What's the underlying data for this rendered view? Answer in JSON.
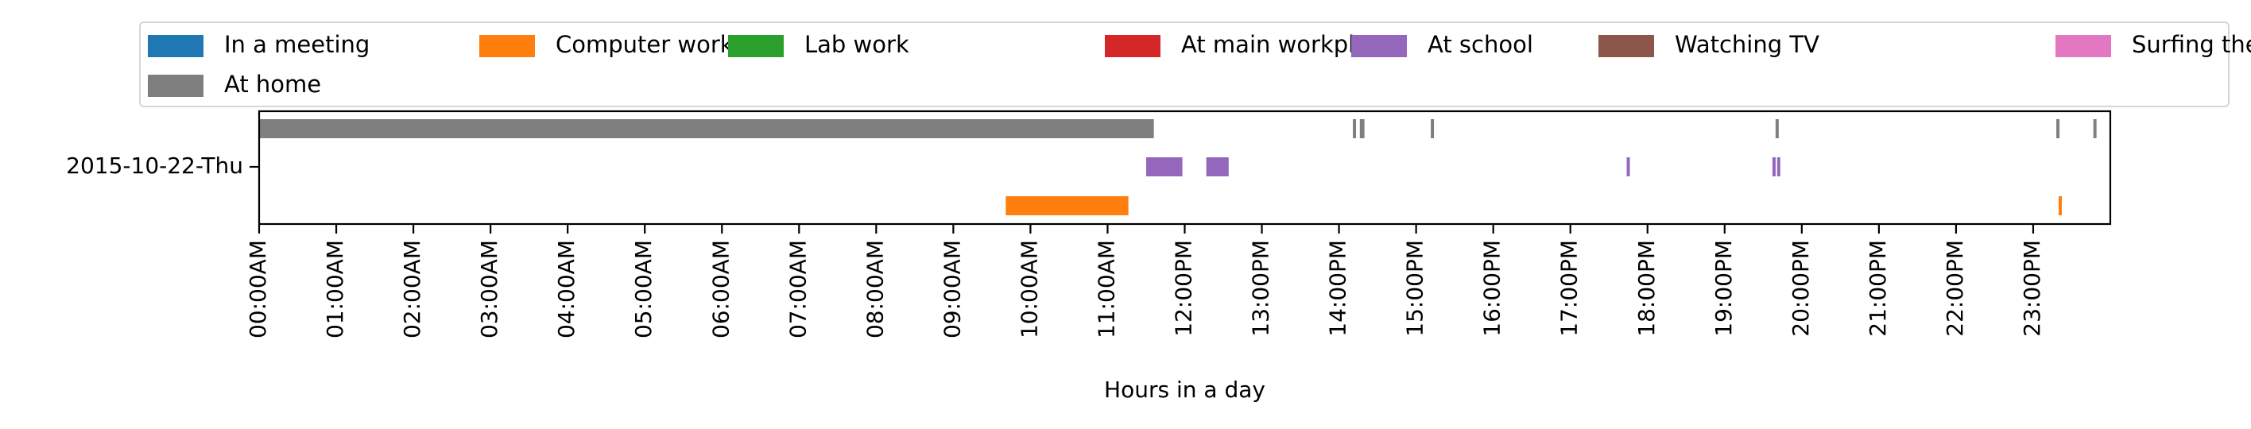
{
  "chart_data": {
    "type": "timeline",
    "title": "",
    "xlabel": "Hours in a day",
    "ylabel": "",
    "row_label": "2015-10-22-Thu",
    "xlim": [
      0,
      24
    ],
    "x_unit": "hours",
    "x_ticks": [
      0,
      1,
      2,
      3,
      4,
      5,
      6,
      7,
      8,
      9,
      10,
      11,
      12,
      13,
      14,
      15,
      16,
      17,
      18,
      19,
      20,
      21,
      22,
      23
    ],
    "x_tick_labels": [
      "00:00AM",
      "01:00AM",
      "02:00AM",
      "03:00AM",
      "04:00AM",
      "05:00AM",
      "06:00AM",
      "07:00AM",
      "08:00AM",
      "09:00AM",
      "10:00AM",
      "11:00AM",
      "12:00PM",
      "13:00PM",
      "14:00PM",
      "15:00PM",
      "16:00PM",
      "17:00PM",
      "18:00PM",
      "19:00PM",
      "20:00PM",
      "21:00PM",
      "22:00PM",
      "23:00PM"
    ],
    "legend_position": "top",
    "lanes": [
      "At home",
      "At school",
      "Computer work"
    ],
    "series": [
      {
        "name": "In a meeting",
        "color": "#1f77b4",
        "intervals": []
      },
      {
        "name": "Computer work",
        "color": "#ff7f0e",
        "intervals": [
          [
            9.68,
            11.27
          ],
          [
            23.33,
            23.37
          ]
        ]
      },
      {
        "name": "Lab work",
        "color": "#2ca02c",
        "intervals": []
      },
      {
        "name": "At main workplace",
        "color": "#d62728",
        "intervals": []
      },
      {
        "name": "At school",
        "color": "#9467bd",
        "intervals": [
          [
            11.5,
            11.97
          ],
          [
            12.28,
            12.57
          ],
          [
            17.73,
            17.77
          ],
          [
            19.62,
            19.66
          ],
          [
            19.68,
            19.72
          ]
        ]
      },
      {
        "name": "Watching TV",
        "color": "#8c564b",
        "intervals": []
      },
      {
        "name": "Surfing the internet",
        "color": "#e377c2",
        "intervals": []
      },
      {
        "name": "At home",
        "color": "#7f7f7f",
        "intervals": [
          [
            0.0,
            11.5
          ],
          [
            11.5,
            11.6
          ],
          [
            14.18,
            14.22
          ],
          [
            14.27,
            14.33
          ],
          [
            15.19,
            15.23
          ],
          [
            19.66,
            19.7
          ],
          [
            23.3,
            23.34
          ],
          [
            23.78,
            23.82
          ]
        ]
      }
    ]
  }
}
